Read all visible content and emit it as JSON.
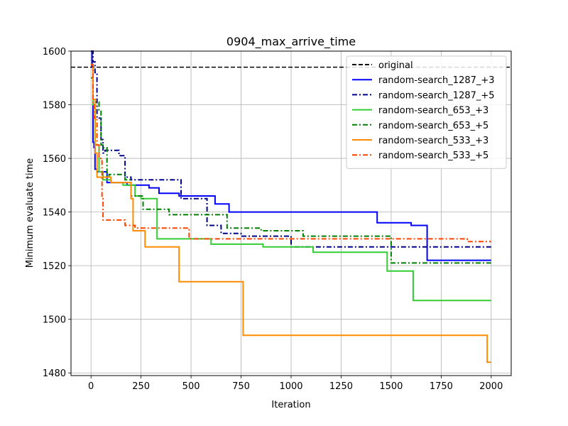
{
  "chart_data": {
    "type": "line",
    "title": "0904_max_arrive_time",
    "xlabel": "Iteration",
    "ylabel": "Minimum evaluate time",
    "xlim": [
      -100,
      2100
    ],
    "ylim": [
      1479,
      1600
    ],
    "xticks": [
      0,
      250,
      500,
      750,
      1000,
      1250,
      1500,
      1750,
      2000
    ],
    "yticks": [
      1480,
      1500,
      1520,
      1540,
      1560,
      1580,
      1600
    ],
    "grid": true,
    "legend_position": "top-right",
    "baseline": {
      "name": "original",
      "value": 1594,
      "color": "#000000",
      "style": "dashed"
    },
    "series": [
      {
        "name": "random-search_1287_+3",
        "color": "#0000ff",
        "style": "solid",
        "x": [
          0,
          5,
          10,
          15,
          20,
          30,
          80,
          180,
          250,
          290,
          340,
          440,
          620,
          690,
          1430,
          1600,
          1680,
          2000
        ],
        "y": [
          1600,
          1594,
          1566,
          1564,
          1556,
          1555,
          1551,
          1550,
          1550,
          1549,
          1547,
          1546,
          1543,
          1540,
          1536,
          1535,
          1522,
          1522
        ]
      },
      {
        "name": "random-search_1287_+5",
        "color": "#00008b",
        "style": "dashdot",
        "x": [
          0,
          10,
          20,
          30,
          50,
          60,
          70,
          140,
          170,
          200,
          450,
          560,
          580,
          650,
          750,
          1000,
          1250,
          2000
        ],
        "y": [
          1600,
          1596,
          1592,
          1575,
          1567,
          1562,
          1563,
          1561,
          1553,
          1552,
          1545,
          1545,
          1535,
          1532,
          1531,
          1527,
          1527,
          1527
        ]
      },
      {
        "name": "random-search_653_+3",
        "color": "#32cd32",
        "style": "solid",
        "x": [
          0,
          10,
          20,
          40,
          60,
          100,
          160,
          220,
          250,
          330,
          600,
          860,
          1110,
          1480,
          1610,
          2000
        ],
        "y": [
          1595,
          1580,
          1565,
          1555,
          1552,
          1551,
          1550,
          1546,
          1545,
          1530,
          1528,
          1527,
          1525,
          1518,
          1507,
          1507
        ]
      },
      {
        "name": "random-search_653_+5",
        "color": "#008000",
        "style": "dashdot",
        "x": [
          0,
          10,
          20,
          40,
          50,
          60,
          80,
          90,
          170,
          200,
          260,
          390,
          680,
          850,
          1060,
          1500,
          2000
        ],
        "y": [
          1590,
          1582,
          1581,
          1578,
          1565,
          1564,
          1553,
          1554,
          1552,
          1546,
          1541,
          1539,
          1534,
          1533,
          1531,
          1521,
          1521
        ]
      },
      {
        "name": "random-search_533_+3",
        "color": "#ff8c00",
        "style": "solid",
        "x": [
          0,
          10,
          20,
          30,
          100,
          200,
          210,
          270,
          440,
          760,
          1000,
          1980,
          2000
        ],
        "y": [
          1595,
          1582,
          1562,
          1553,
          1551,
          1545,
          1533,
          1527,
          1514,
          1494,
          1494,
          1484,
          1484
        ]
      },
      {
        "name": "random-search_533_+5",
        "color": "#ff4500",
        "style": "dashdot",
        "x": [
          0,
          10,
          15,
          30,
          40,
          55,
          60,
          170,
          220,
          490,
          750,
          1250,
          1880,
          2000
        ],
        "y": [
          1595,
          1580,
          1575,
          1565,
          1560,
          1545,
          1537,
          1535,
          1534,
          1530,
          1530,
          1530,
          1529,
          1529
        ]
      }
    ]
  }
}
